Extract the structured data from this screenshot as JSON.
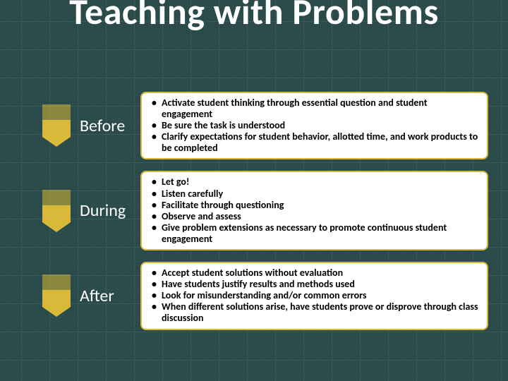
{
  "title": "Teaching with Problems",
  "accent_color": "#d9b93a",
  "grid_bg": "#2b4a4a",
  "grid_line_primary": "#3a5c5c",
  "grid_line_secondary": "#325050",
  "title_color": "#ffffff",
  "label_color": "#ffffff",
  "content_bg": "#ffffff",
  "content_text_color": "#000000",
  "title_fontsize": 52,
  "label_fontsize": 24,
  "bullet_fontsize": 14,
  "stages": [
    {
      "label": "Before",
      "bullets": [
        "Activate student thinking through essential question and student engagement",
        "Be sure the task is understood",
        "Clarify expectations for student behavior, allotted time, and work products to be completed"
      ]
    },
    {
      "label": "During",
      "bullets": [
        "Let go!",
        "Listen carefully",
        "Facilitate through questioning",
        "Observe and assess",
        "Give problem extensions as necessary to promote continuous student engagement"
      ]
    },
    {
      "label": "After",
      "bullets": [
        "Accept student solutions without evaluation",
        "Have students justify results and methods used",
        "Look for misunderstanding and/or common errors",
        "When different solutions arise, have students prove or disprove through class discussion"
      ]
    }
  ]
}
